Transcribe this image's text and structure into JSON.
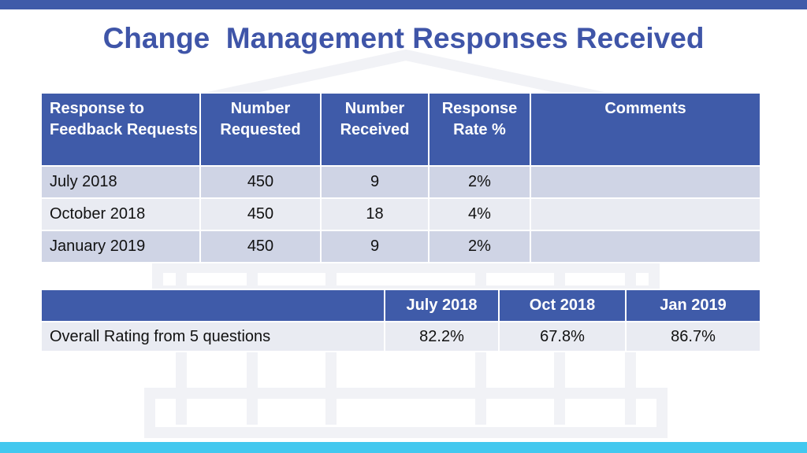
{
  "title": "Change  Management Responses Received",
  "table1": {
    "headers": [
      "Response to Feedback Requests",
      "Number Requested",
      "Number Received",
      "Response Rate %",
      "Comments"
    ],
    "rows": [
      [
        "July 2018",
        "450",
        "9",
        "2%",
        ""
      ],
      [
        "October 2018",
        "450",
        "18",
        "4%",
        ""
      ],
      [
        "January 2019",
        "450",
        "9",
        "2%",
        ""
      ]
    ]
  },
  "table2": {
    "headers": [
      "",
      "July 2018",
      "Oct 2018",
      "Jan 2019"
    ],
    "rows": [
      [
        "Overall Rating from 5 questions",
        "82.2%",
        "67.8%",
        "86.7%"
      ]
    ]
  },
  "colors": {
    "header_bg": "#3f5ba9",
    "title": "#3f55a8",
    "row_dark": "#cfd4e5",
    "row_light": "#e9ebf2",
    "top_bar": "#3f5ba9",
    "bottom_bar": "#42c8ef"
  }
}
